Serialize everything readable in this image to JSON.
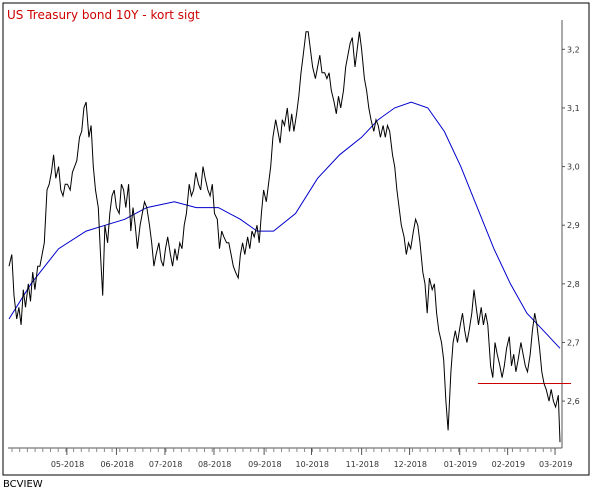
{
  "chart_data": {
    "type": "line",
    "title": "US Treasury bond 10Y - kort sigt",
    "source": "BCVIEW",
    "ylim": [
      2.52,
      3.25
    ],
    "xlim": [
      0,
      1
    ],
    "y_ticks": [
      {
        "value": 3.2,
        "label": "3,2"
      },
      {
        "value": 3.1,
        "label": "3,1"
      },
      {
        "value": 3.0,
        "label": "3,0"
      },
      {
        "value": 2.9,
        "label": "2,9"
      },
      {
        "value": 2.8,
        "label": "2,8"
      },
      {
        "value": 2.7,
        "label": "2,7"
      },
      {
        "value": 2.6,
        "label": "2,6"
      }
    ],
    "x_ticks": [
      {
        "pos": 0.105,
        "label": "05-2018"
      },
      {
        "pos": 0.195,
        "label": "06-2018"
      },
      {
        "pos": 0.283,
        "label": "07-2018"
      },
      {
        "pos": 0.372,
        "label": "08-2018"
      },
      {
        "pos": 0.463,
        "label": "09-2018"
      },
      {
        "pos": 0.549,
        "label": "10-2018"
      },
      {
        "pos": 0.64,
        "label": "11-2018"
      },
      {
        "pos": 0.727,
        "label": "12-2018"
      },
      {
        "pos": 0.818,
        "label": "01-2019"
      },
      {
        "pos": 0.905,
        "label": "02-2019"
      },
      {
        "pos": 0.991,
        "label": "03-2019"
      }
    ],
    "colors": {
      "price": "#000000",
      "average": "#0000cc",
      "support": "#cc0000",
      "title": "#cc0000"
    },
    "support": {
      "value": 2.63,
      "x_start": 0.851,
      "x_end": 1.02
    },
    "series": [
      {
        "key": "price",
        "points": [
          [
            0.0,
            2.83
          ],
          [
            0.005,
            2.85
          ],
          [
            0.009,
            2.78
          ],
          [
            0.014,
            2.74
          ],
          [
            0.018,
            2.76
          ],
          [
            0.022,
            2.73
          ],
          [
            0.026,
            2.79
          ],
          [
            0.03,
            2.76
          ],
          [
            0.035,
            2.8
          ],
          [
            0.039,
            2.77
          ],
          [
            0.043,
            2.82
          ],
          [
            0.047,
            2.79
          ],
          [
            0.052,
            2.83
          ],
          [
            0.056,
            2.83
          ],
          [
            0.06,
            2.85
          ],
          [
            0.064,
            2.87
          ],
          [
            0.069,
            2.96
          ],
          [
            0.073,
            2.97
          ],
          [
            0.077,
            2.99
          ],
          [
            0.081,
            3.02
          ],
          [
            0.085,
            2.98
          ],
          [
            0.09,
            3.0
          ],
          [
            0.094,
            2.96
          ],
          [
            0.098,
            2.95
          ],
          [
            0.102,
            2.97
          ],
          [
            0.106,
            2.97
          ],
          [
            0.111,
            2.96
          ],
          [
            0.115,
            2.99
          ],
          [
            0.119,
            3.0
          ],
          [
            0.123,
            3.01
          ],
          [
            0.128,
            3.05
          ],
          [
            0.132,
            3.06
          ],
          [
            0.136,
            3.1
          ],
          [
            0.14,
            3.11
          ],
          [
            0.145,
            3.05
          ],
          [
            0.149,
            3.07
          ],
          [
            0.153,
            3.0
          ],
          [
            0.157,
            2.96
          ],
          [
            0.162,
            2.93
          ],
          [
            0.166,
            2.85
          ],
          [
            0.17,
            2.78
          ],
          [
            0.174,
            2.9
          ],
          [
            0.179,
            2.87
          ],
          [
            0.183,
            2.92
          ],
          [
            0.187,
            2.95
          ],
          [
            0.191,
            2.96
          ],
          [
            0.195,
            2.93
          ],
          [
            0.2,
            2.92
          ],
          [
            0.204,
            2.97
          ],
          [
            0.208,
            2.96
          ],
          [
            0.212,
            2.93
          ],
          [
            0.217,
            2.97
          ],
          [
            0.221,
            2.89
          ],
          [
            0.225,
            2.93
          ],
          [
            0.229,
            2.9
          ],
          [
            0.233,
            2.86
          ],
          [
            0.238,
            2.9
          ],
          [
            0.242,
            2.92
          ],
          [
            0.246,
            2.94
          ],
          [
            0.25,
            2.93
          ],
          [
            0.255,
            2.9
          ],
          [
            0.259,
            2.87
          ],
          [
            0.263,
            2.83
          ],
          [
            0.267,
            2.85
          ],
          [
            0.272,
            2.87
          ],
          [
            0.276,
            2.84
          ],
          [
            0.28,
            2.83
          ],
          [
            0.284,
            2.86
          ],
          [
            0.288,
            2.88
          ],
          [
            0.293,
            2.85
          ],
          [
            0.297,
            2.83
          ],
          [
            0.301,
            2.86
          ],
          [
            0.305,
            2.84
          ],
          [
            0.31,
            2.87
          ],
          [
            0.314,
            2.86
          ],
          [
            0.318,
            2.9
          ],
          [
            0.322,
            2.92
          ],
          [
            0.327,
            2.97
          ],
          [
            0.331,
            2.95
          ],
          [
            0.335,
            2.96
          ],
          [
            0.339,
            2.99
          ],
          [
            0.344,
            2.97
          ],
          [
            0.348,
            2.96
          ],
          [
            0.352,
            3.0
          ],
          [
            0.356,
            2.98
          ],
          [
            0.361,
            2.96
          ],
          [
            0.365,
            2.95
          ],
          [
            0.369,
            2.97
          ],
          [
            0.373,
            2.92
          ],
          [
            0.378,
            2.91
          ],
          [
            0.382,
            2.86
          ],
          [
            0.386,
            2.89
          ],
          [
            0.39,
            2.88
          ],
          [
            0.395,
            2.87
          ],
          [
            0.399,
            2.87
          ],
          [
            0.403,
            2.85
          ],
          [
            0.407,
            2.83
          ],
          [
            0.411,
            2.82
          ],
          [
            0.416,
            2.81
          ],
          [
            0.42,
            2.85
          ],
          [
            0.424,
            2.87
          ],
          [
            0.428,
            2.85
          ],
          [
            0.433,
            2.88
          ],
          [
            0.437,
            2.86
          ],
          [
            0.441,
            2.89
          ],
          [
            0.445,
            2.88
          ],
          [
            0.45,
            2.9
          ],
          [
            0.454,
            2.87
          ],
          [
            0.458,
            2.92
          ],
          [
            0.462,
            2.96
          ],
          [
            0.467,
            2.94
          ],
          [
            0.471,
            2.97
          ],
          [
            0.475,
            3.0
          ],
          [
            0.479,
            3.05
          ],
          [
            0.484,
            3.08
          ],
          [
            0.488,
            3.06
          ],
          [
            0.492,
            3.04
          ],
          [
            0.496,
            3.08
          ],
          [
            0.5,
            3.07
          ],
          [
            0.505,
            3.1
          ],
          [
            0.509,
            3.06
          ],
          [
            0.513,
            3.09
          ],
          [
            0.517,
            3.06
          ],
          [
            0.522,
            3.09
          ],
          [
            0.526,
            3.12
          ],
          [
            0.53,
            3.16
          ],
          [
            0.534,
            3.19
          ],
          [
            0.539,
            3.23
          ],
          [
            0.543,
            3.23
          ],
          [
            0.547,
            3.2
          ],
          [
            0.551,
            3.17
          ],
          [
            0.556,
            3.15
          ],
          [
            0.56,
            3.17
          ],
          [
            0.564,
            3.19
          ],
          [
            0.568,
            3.16
          ],
          [
            0.573,
            3.16
          ],
          [
            0.577,
            3.15
          ],
          [
            0.581,
            3.16
          ],
          [
            0.585,
            3.13
          ],
          [
            0.59,
            3.11
          ],
          [
            0.594,
            3.09
          ],
          [
            0.598,
            3.12
          ],
          [
            0.602,
            3.1
          ],
          [
            0.607,
            3.13
          ],
          [
            0.611,
            3.17
          ],
          [
            0.615,
            3.19
          ],
          [
            0.619,
            3.21
          ],
          [
            0.623,
            3.22
          ],
          [
            0.628,
            3.17
          ],
          [
            0.632,
            3.2
          ],
          [
            0.636,
            3.23
          ],
          [
            0.64,
            3.2
          ],
          [
            0.645,
            3.15
          ],
          [
            0.649,
            3.13
          ],
          [
            0.653,
            3.1
          ],
          [
            0.657,
            3.08
          ],
          [
            0.662,
            3.06
          ],
          [
            0.666,
            3.08
          ],
          [
            0.67,
            3.07
          ],
          [
            0.674,
            3.05
          ],
          [
            0.679,
            3.07
          ],
          [
            0.683,
            3.05
          ],
          [
            0.687,
            3.07
          ],
          [
            0.691,
            3.06
          ],
          [
            0.696,
            3.02
          ],
          [
            0.7,
            3.0
          ],
          [
            0.704,
            2.96
          ],
          [
            0.708,
            2.93
          ],
          [
            0.712,
            2.9
          ],
          [
            0.717,
            2.88
          ],
          [
            0.721,
            2.85
          ],
          [
            0.725,
            2.87
          ],
          [
            0.729,
            2.86
          ],
          [
            0.734,
            2.89
          ],
          [
            0.738,
            2.91
          ],
          [
            0.742,
            2.9
          ],
          [
            0.746,
            2.87
          ],
          [
            0.751,
            2.82
          ],
          [
            0.755,
            2.8
          ],
          [
            0.759,
            2.75
          ],
          [
            0.763,
            2.81
          ],
          [
            0.768,
            2.79
          ],
          [
            0.772,
            2.8
          ],
          [
            0.776,
            2.75
          ],
          [
            0.78,
            2.72
          ],
          [
            0.785,
            2.7
          ],
          [
            0.789,
            2.67
          ],
          [
            0.793,
            2.6
          ],
          [
            0.797,
            2.55
          ],
          [
            0.802,
            2.65
          ],
          [
            0.806,
            2.7
          ],
          [
            0.81,
            2.72
          ],
          [
            0.814,
            2.7
          ],
          [
            0.819,
            2.73
          ],
          [
            0.823,
            2.75
          ],
          [
            0.827,
            2.72
          ],
          [
            0.831,
            2.7
          ],
          [
            0.835,
            2.72
          ],
          [
            0.84,
            2.75
          ],
          [
            0.844,
            2.79
          ],
          [
            0.848,
            2.76
          ],
          [
            0.852,
            2.73
          ],
          [
            0.857,
            2.76
          ],
          [
            0.861,
            2.73
          ],
          [
            0.865,
            2.75
          ],
          [
            0.869,
            2.73
          ],
          [
            0.874,
            2.66
          ],
          [
            0.878,
            2.64
          ],
          [
            0.882,
            2.7
          ],
          [
            0.886,
            2.68
          ],
          [
            0.891,
            2.66
          ],
          [
            0.895,
            2.64
          ],
          [
            0.899,
            2.66
          ],
          [
            0.903,
            2.69
          ],
          [
            0.908,
            2.71
          ],
          [
            0.912,
            2.66
          ],
          [
            0.916,
            2.68
          ],
          [
            0.92,
            2.65
          ],
          [
            0.924,
            2.67
          ],
          [
            0.929,
            2.7
          ],
          [
            0.933,
            2.68
          ],
          [
            0.937,
            2.66
          ],
          [
            0.941,
            2.65
          ],
          [
            0.946,
            2.68
          ],
          [
            0.95,
            2.72
          ],
          [
            0.954,
            2.75
          ],
          [
            0.958,
            2.73
          ],
          [
            0.963,
            2.69
          ],
          [
            0.967,
            2.65
          ],
          [
            0.971,
            2.63
          ],
          [
            0.975,
            2.62
          ],
          [
            0.98,
            2.6
          ],
          [
            0.984,
            2.62
          ],
          [
            0.988,
            2.6
          ],
          [
            0.992,
            2.59
          ],
          [
            0.997,
            2.61
          ],
          [
            1.0,
            2.53
          ]
        ]
      },
      {
        "key": "average",
        "points": [
          [
            0.0,
            2.74
          ],
          [
            0.04,
            2.8
          ],
          [
            0.09,
            2.86
          ],
          [
            0.14,
            2.89
          ],
          [
            0.175,
            2.9
          ],
          [
            0.21,
            2.91
          ],
          [
            0.25,
            2.93
          ],
          [
            0.3,
            2.94
          ],
          [
            0.34,
            2.93
          ],
          [
            0.38,
            2.93
          ],
          [
            0.42,
            2.91
          ],
          [
            0.45,
            2.89
          ],
          [
            0.48,
            2.89
          ],
          [
            0.52,
            2.92
          ],
          [
            0.56,
            2.98
          ],
          [
            0.6,
            3.02
          ],
          [
            0.64,
            3.05
          ],
          [
            0.67,
            3.08
          ],
          [
            0.7,
            3.1
          ],
          [
            0.73,
            3.11
          ],
          [
            0.76,
            3.1
          ],
          [
            0.79,
            3.06
          ],
          [
            0.82,
            3.0
          ],
          [
            0.85,
            2.93
          ],
          [
            0.88,
            2.86
          ],
          [
            0.91,
            2.8
          ],
          [
            0.94,
            2.75
          ],
          [
            0.97,
            2.72
          ],
          [
            1.0,
            2.69
          ]
        ]
      }
    ]
  }
}
